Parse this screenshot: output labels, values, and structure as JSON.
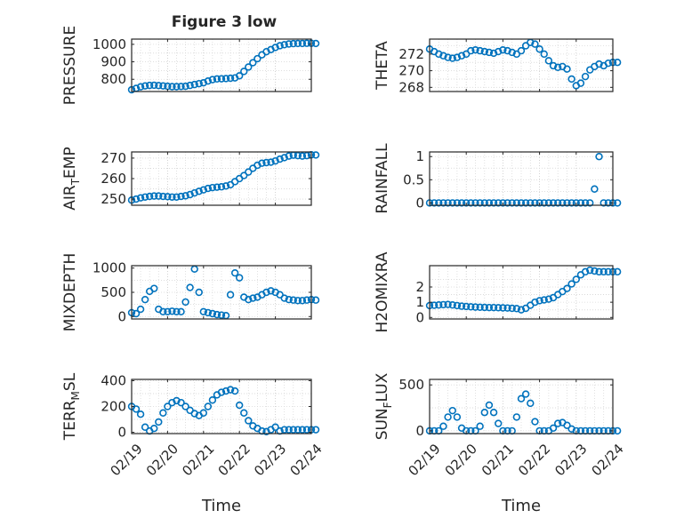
{
  "figure": {
    "title": "Figure 3 low",
    "marker_color": "#0072BD",
    "axis_color": "#262626",
    "grid_color": "#d9d9d9"
  },
  "chart_data": [
    {
      "id": "pressure",
      "type": "scatter",
      "title": "Figure 3 low",
      "ylabel": "PRESSURE",
      "xlabel": "",
      "xlim": [
        "02/19",
        "02/23 06:00"
      ],
      "ylim": [
        730,
        1030
      ],
      "yticks": [
        800,
        900,
        1000
      ],
      "ytick_labels": [
        "800",
        "900",
        "1000"
      ],
      "xtick_labels": [],
      "grid": true,
      "x_start": "02/19 00:00",
      "x_step_hours": 3,
      "y": [
        740,
        748,
        757,
        762,
        765,
        766,
        764,
        762,
        760,
        758,
        758,
        759,
        760,
        765,
        770,
        775,
        780,
        790,
        798,
        802,
        803,
        804,
        806,
        808,
        820,
        845,
        870,
        895,
        918,
        940,
        958,
        970,
        982,
        992,
        998,
        1002,
        1004,
        1005,
        1005,
        1006,
        1006,
        1005
      ]
    },
    {
      "id": "theta",
      "type": "scatter",
      "ylabel": "THETA",
      "xlabel": "",
      "xlim": [
        "02/19",
        "02/23 06:00"
      ],
      "ylim": [
        267.5,
        273.8
      ],
      "yticks": [
        268,
        270,
        272
      ],
      "ytick_labels": [
        "268",
        "270",
        "272"
      ],
      "xtick_labels": [],
      "grid": true,
      "x_start": "02/19 00:00",
      "x_step_hours": 3,
      "y": [
        272.6,
        272.3,
        272.0,
        271.8,
        271.6,
        271.5,
        271.6,
        271.8,
        272.0,
        272.4,
        272.5,
        272.4,
        272.3,
        272.2,
        272.1,
        272.3,
        272.5,
        272.4,
        272.2,
        272.0,
        272.4,
        273.0,
        273.4,
        273.2,
        272.6,
        272.0,
        271.2,
        270.6,
        270.4,
        270.5,
        270.2,
        269.0,
        268.2,
        268.5,
        269.3,
        270.1,
        270.5,
        270.8,
        270.6,
        270.9,
        271.0,
        271.0
      ]
    },
    {
      "id": "air_temp",
      "type": "scatter",
      "ylabel": "AIR_TEMP",
      "xlabel": "",
      "xlim": [
        "02/19",
        "02/23 06:00"
      ],
      "ylim": [
        247,
        273
      ],
      "yticks": [
        250,
        260,
        270
      ],
      "ytick_labels": [
        "250",
        "260",
        "270"
      ],
      "xtick_labels": [],
      "grid": true,
      "x_start": "02/19 00:00",
      "x_step_hours": 3,
      "y": [
        249.5,
        250.0,
        250.6,
        251.0,
        251.3,
        251.5,
        251.5,
        251.3,
        251.2,
        251.0,
        251.0,
        251.3,
        251.6,
        252.2,
        253.0,
        253.8,
        254.5,
        255.2,
        255.6,
        255.8,
        256.0,
        256.4,
        257.0,
        258.5,
        260.0,
        261.5,
        263.2,
        265.0,
        266.5,
        267.5,
        267.8,
        268.0,
        268.6,
        269.5,
        270.2,
        271.0,
        271.4,
        271.2,
        271.0,
        271.2,
        271.6,
        271.5
      ]
    },
    {
      "id": "rainfall",
      "type": "scatter",
      "ylabel": "RAINFALL",
      "xlabel": "",
      "xlim": [
        "02/19",
        "02/23 06:00"
      ],
      "ylim": [
        -0.05,
        1.1
      ],
      "yticks": [
        0,
        0.5,
        1
      ],
      "ytick_labels": [
        "0",
        "0.5",
        "1"
      ],
      "xtick_labels": [],
      "grid": true,
      "x_start": "02/19 00:00",
      "x_step_hours": 3,
      "y": [
        0,
        0,
        0,
        0,
        0,
        0,
        0,
        0,
        0,
        0,
        0,
        0,
        0,
        0,
        0,
        0,
        0,
        0,
        0,
        0,
        0,
        0,
        0,
        0,
        0,
        0,
        0,
        0,
        0,
        0,
        0,
        0,
        0,
        0,
        0,
        0,
        0.3,
        1.0,
        0,
        0,
        0,
        0
      ]
    },
    {
      "id": "mixdepth",
      "type": "scatter",
      "ylabel": "MIXDEPTH",
      "xlabel": "",
      "xlim": [
        "02/19",
        "02/23 06:00"
      ],
      "ylim": [
        -50,
        1050
      ],
      "yticks": [
        0,
        500,
        1000
      ],
      "ytick_labels": [
        "0",
        "500",
        "1000"
      ],
      "xtick_labels": [],
      "grid": true,
      "x_start": "02/19 00:00",
      "x_step_hours": 3,
      "y": [
        80,
        60,
        150,
        350,
        520,
        580,
        150,
        100,
        100,
        110,
        100,
        100,
        300,
        600,
        980,
        500,
        100,
        80,
        60,
        40,
        30,
        20,
        450,
        900,
        800,
        400,
        350,
        380,
        400,
        450,
        500,
        530,
        500,
        450,
        380,
        350,
        340,
        330,
        330,
        340,
        350,
        340
      ]
    },
    {
      "id": "h2omixra",
      "type": "scatter",
      "ylabel": "H2OMIXRA",
      "xlabel": "",
      "xlim": [
        "02/19",
        "02/23 06:00"
      ],
      "ylim": [
        -0.1,
        3.4
      ],
      "yticks": [
        0,
        1,
        2
      ],
      "ytick_labels": [
        "0",
        "1",
        "2"
      ],
      "xtick_labels": [],
      "grid": true,
      "x_start": "02/19 00:00",
      "x_step_hours": 3,
      "y": [
        0.78,
        0.8,
        0.82,
        0.84,
        0.85,
        0.82,
        0.78,
        0.74,
        0.72,
        0.7,
        0.68,
        0.67,
        0.66,
        0.65,
        0.65,
        0.64,
        0.63,
        0.62,
        0.6,
        0.58,
        0.5,
        0.6,
        0.8,
        1.0,
        1.1,
        1.15,
        1.2,
        1.3,
        1.5,
        1.7,
        1.9,
        2.2,
        2.5,
        2.8,
        3.0,
        3.1,
        3.05,
        3.0,
        3.0,
        3.0,
        3.0,
        3.0
      ]
    },
    {
      "id": "terr_msl",
      "type": "scatter",
      "ylabel": "TERR_MSL",
      "xlabel": "Time",
      "xlim": [
        "02/19",
        "02/24"
      ],
      "ylim": [
        -10,
        410
      ],
      "yticks": [
        0,
        200,
        400
      ],
      "ytick_labels": [
        "0",
        "200",
        "400"
      ],
      "xtick_labels": [
        "02/19",
        "02/20",
        "02/21",
        "02/22",
        "02/23",
        "02/24"
      ],
      "grid": true,
      "x_start": "02/19 00:00",
      "x_step_hours": 3,
      "y": [
        200,
        180,
        140,
        40,
        10,
        30,
        80,
        150,
        200,
        230,
        245,
        230,
        200,
        170,
        145,
        130,
        150,
        200,
        250,
        290,
        310,
        320,
        330,
        320,
        210,
        150,
        90,
        50,
        30,
        10,
        5,
        20,
        40,
        10,
        20,
        20,
        20,
        20,
        20,
        20,
        20,
        20
      ]
    },
    {
      "id": "sun_flux",
      "type": "scatter",
      "ylabel": "SUN_FLUX",
      "xlabel": "Time",
      "xlim": [
        "02/19",
        "02/24"
      ],
      "ylim": [
        -30,
        560
      ],
      "yticks": [
        0,
        500
      ],
      "ytick_labels": [
        "0",
        "500"
      ],
      "xtick_labels": [
        "02/19",
        "02/20",
        "02/21",
        "02/22",
        "02/23",
        "02/24"
      ],
      "grid": true,
      "x_start": "02/19 00:00",
      "x_step_hours": 3,
      "y": [
        0,
        0,
        0,
        50,
        150,
        220,
        150,
        30,
        0,
        0,
        0,
        50,
        200,
        280,
        200,
        80,
        0,
        0,
        0,
        150,
        350,
        400,
        300,
        100,
        0,
        0,
        0,
        30,
        80,
        90,
        60,
        20,
        0,
        0,
        0,
        0,
        0,
        0,
        0,
        0,
        0,
        0
      ]
    }
  ]
}
